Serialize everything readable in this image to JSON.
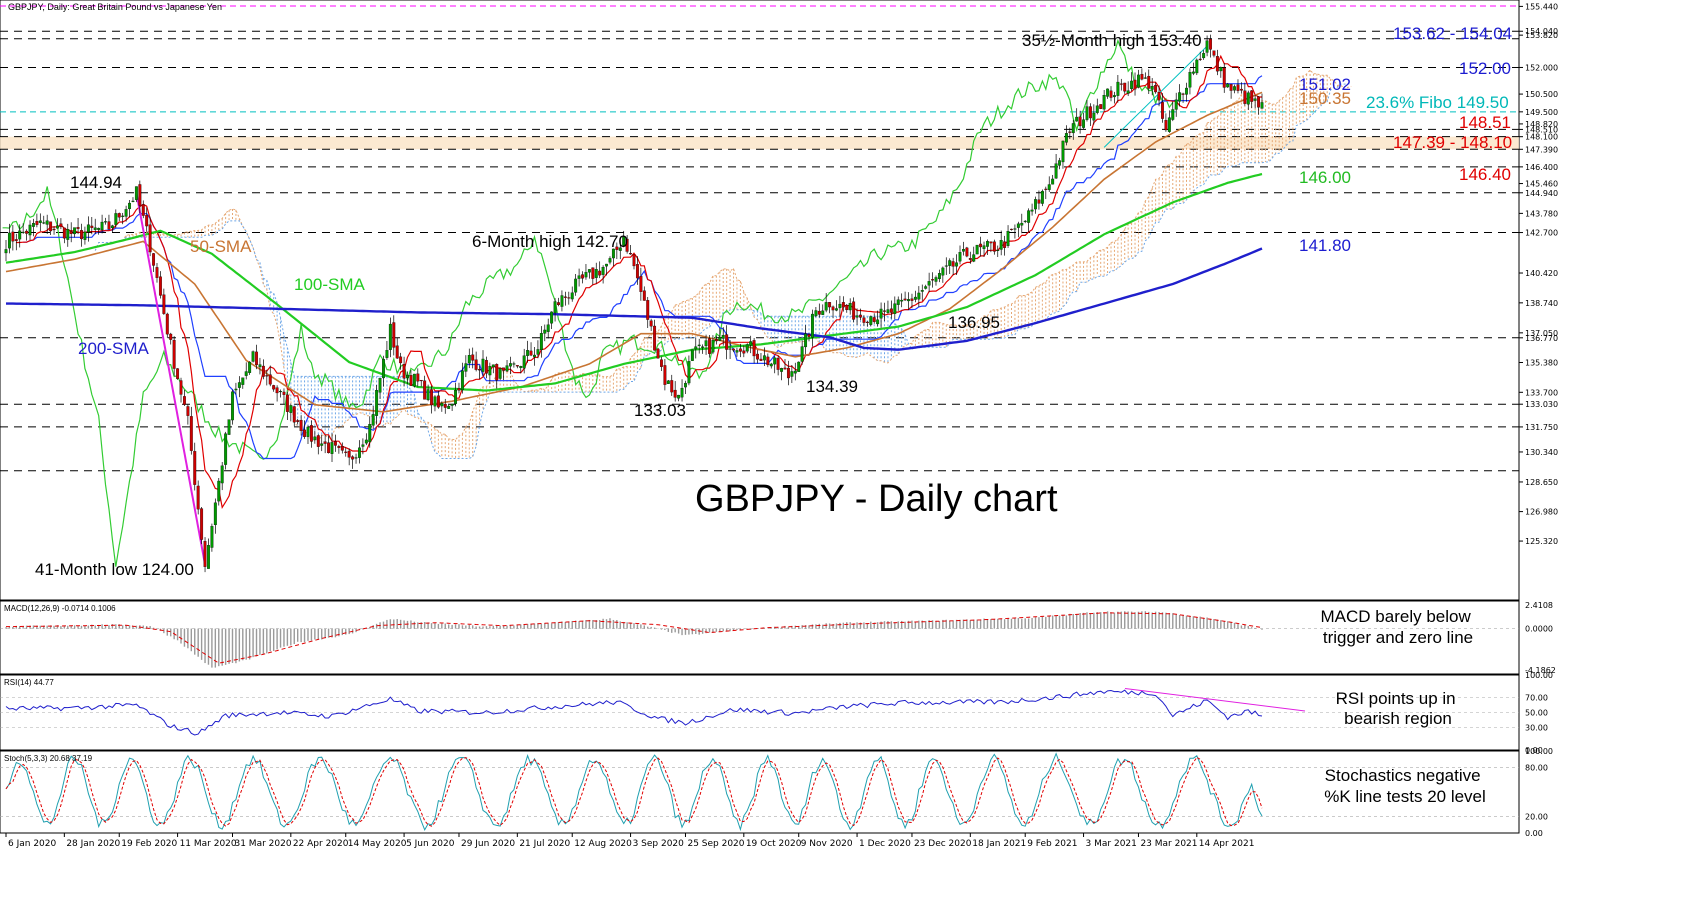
{
  "header": {
    "title": "GBPJPY, Daily:  Great Britain Pound vs Japanese Yen"
  },
  "watermark": "GBPJPY - Daily chart",
  "colors": {
    "candle_up": "#009900",
    "candle_down": "#cc0000",
    "sma50": "#c87533",
    "sma100": "#22cc22",
    "sma200": "#1f1fcc",
    "tenkan": "#e00000",
    "kijun": "#2040ff",
    "chikou": "#33cc33",
    "cloud_bull": "#e6a874",
    "cloud_bear": "#6fa8e8",
    "fibo": "#00c0c0",
    "trend": "#e020e0"
  },
  "chart_data": [
    {
      "type": "line",
      "panel": "price",
      "title": "GBPJPY, Daily:  Great Britain Pound vs Japanese Yen",
      "ylim": [
        122.0,
        155.8
      ],
      "y_ticks": [
        "125.320",
        "126.980",
        "128.650",
        "130.340",
        "131.750",
        "133.030",
        "133.700",
        "135.380",
        "136.770",
        "137.050",
        "138.740",
        "140.420",
        "142.700",
        "143.780",
        "144.940",
        "145.460",
        "146.400",
        "147.390",
        "148.100",
        "148.510",
        "148.820",
        "149.500",
        "150.500",
        "152.000",
        "153.820",
        "154.040",
        "155.440"
      ],
      "x_labels": [
        "6 Jan 2020",
        "28 Jan 2020",
        "19 Feb 2020",
        "11 Mar 2020",
        "31 Mar 2020",
        "22 Apr 2020",
        "14 May 2020",
        "5 Jun 2020",
        "29 Jun 2020",
        "21 Jul 2020",
        "12 Aug 2020",
        "3 Sep 2020",
        "25 Sep 2020",
        "19 Oct 2020",
        "9 Nov 2020",
        "1 Dec 2020",
        "23 Dec 2020",
        "18 Jan 2021",
        "9 Feb 2021",
        "3 Mar 2021",
        "23 Mar 2021",
        "14 Apr 2021"
      ],
      "close_anchors": [
        [
          0,
          142.2
        ],
        [
          10,
          143.2
        ],
        [
          20,
          142.6
        ],
        [
          30,
          143.0
        ],
        [
          38,
          144.9
        ],
        [
          42,
          142.0
        ],
        [
          48,
          136.3
        ],
        [
          53,
          132.0
        ],
        [
          58,
          124.0
        ],
        [
          62,
          128.6
        ],
        [
          66,
          133.4
        ],
        [
          72,
          135.6
        ],
        [
          80,
          133.5
        ],
        [
          88,
          131.3
        ],
        [
          95,
          130.5
        ],
        [
          100,
          129.8
        ],
        [
          106,
          131.8
        ],
        [
          112,
          137.2
        ],
        [
          115,
          135.0
        ],
        [
          120,
          134.2
        ],
        [
          126,
          132.8
        ],
        [
          130,
          133.3
        ],
        [
          135,
          135.6
        ],
        [
          145,
          134.6
        ],
        [
          155,
          136.2
        ],
        [
          160,
          138.6
        ],
        [
          168,
          140.0
        ],
        [
          176,
          141.0
        ],
        [
          180,
          142.5
        ],
        [
          183,
          140.8
        ],
        [
          188,
          137.2
        ],
        [
          192,
          134.4
        ],
        [
          196,
          133.4
        ],
        [
          200,
          135.8
        ],
        [
          208,
          136.6
        ],
        [
          216,
          136.3
        ],
        [
          224,
          135.2
        ],
        [
          228,
          134.6
        ],
        [
          232,
          136.0
        ],
        [
          236,
          138.3
        ],
        [
          240,
          138.8
        ],
        [
          248,
          138.1
        ],
        [
          256,
          138.0
        ],
        [
          264,
          139.0
        ],
        [
          272,
          140.2
        ],
        [
          280,
          141.5
        ],
        [
          290,
          142.0
        ],
        [
          298,
          143.6
        ],
        [
          304,
          145.5
        ],
        [
          310,
          148.5
        ],
        [
          316,
          149.6
        ],
        [
          322,
          150.6
        ],
        [
          330,
          151.3
        ],
        [
          334,
          151.1
        ],
        [
          338,
          148.4
        ],
        [
          342,
          150.5
        ],
        [
          346,
          152.0
        ],
        [
          350,
          153.4
        ],
        [
          352,
          152.4
        ],
        [
          356,
          150.9
        ],
        [
          362,
          150.2
        ],
        [
          366,
          149.7
        ]
      ],
      "series": [
        {
          "name": "50-SMA",
          "label": "50-SMA",
          "anchors": [
            [
              0,
              140.5
            ],
            [
              20,
              141.2
            ],
            [
              40,
              142.2
            ],
            [
              55,
              139.8
            ],
            [
              70,
              135.5
            ],
            [
              90,
              133.0
            ],
            [
              110,
              132.6
            ],
            [
              130,
              133.2
            ],
            [
              150,
              134.0
            ],
            [
              170,
              135.3
            ],
            [
              185,
              137.0
            ],
            [
              200,
              137.0
            ],
            [
              215,
              136.3
            ],
            [
              230,
              135.7
            ],
            [
              245,
              136.2
            ],
            [
              260,
              137.0
            ],
            [
              275,
              138.4
            ],
            [
              290,
              140.6
            ],
            [
              305,
              143.0
            ],
            [
              320,
              145.7
            ],
            [
              335,
              147.8
            ],
            [
              350,
              149.3
            ],
            [
              366,
              150.6
            ]
          ]
        },
        {
          "name": "100-SMA",
          "label": "100-SMA",
          "anchors": [
            [
              0,
              141.0
            ],
            [
              20,
              141.6
            ],
            [
              35,
              142.3
            ],
            [
              45,
              142.8
            ],
            [
              60,
              141.5
            ],
            [
              80,
              138.5
            ],
            [
              100,
              135.4
            ],
            [
              120,
              134.0
            ],
            [
              140,
              133.8
            ],
            [
              160,
              134.2
            ],
            [
              180,
              135.3
            ],
            [
              200,
              136.1
            ],
            [
              220,
              136.4
            ],
            [
              240,
              136.9
            ],
            [
              260,
              137.4
            ],
            [
              280,
              138.5
            ],
            [
              300,
              140.3
            ],
            [
              320,
              142.6
            ],
            [
              340,
              144.4
            ],
            [
              356,
              145.5
            ],
            [
              366,
              146.0
            ]
          ]
        },
        {
          "name": "200-SMA",
          "label": "200-SMA",
          "anchors": [
            [
              0,
              138.7
            ],
            [
              40,
              138.6
            ],
            [
              80,
              138.4
            ],
            [
              120,
              138.2
            ],
            [
              160,
              138.1
            ],
            [
              200,
              137.9
            ],
            [
              220,
              137.3
            ],
            [
              240,
              136.8
            ],
            [
              250,
              136.2
            ],
            [
              260,
              136.1
            ],
            [
              280,
              136.6
            ],
            [
              300,
              137.6
            ],
            [
              320,
              138.7
            ],
            [
              340,
              139.8
            ],
            [
              356,
              141.0
            ],
            [
              366,
              141.8
            ]
          ]
        }
      ],
      "annotations": [
        {
          "id": "high35",
          "text": "35½-Month high 153.40"
        },
        {
          "id": "high6m",
          "text": "6-Month high 142.70"
        },
        {
          "id": "h14494",
          "text": "144.94"
        },
        {
          "id": "l133",
          "text": "133.03"
        },
        {
          "id": "l134",
          "text": "134.39"
        },
        {
          "id": "l136",
          "text": "136.95"
        },
        {
          "id": "low41",
          "text": "41-Month low 124.00"
        }
      ],
      "right_labels": [
        {
          "id": "r1",
          "text": "153.62 - 154.04",
          "color": "#1c1cd0"
        },
        {
          "id": "r2",
          "text": "152.00",
          "color": "#1c1cd0"
        },
        {
          "id": "r3",
          "text": "151.02",
          "color": "#1c1cd0"
        },
        {
          "id": "r4",
          "text": "150.35",
          "color": "#c87533"
        },
        {
          "id": "r5",
          "text": "23.6% Fibo 149.50",
          "color": "#00b8b8"
        },
        {
          "id": "r6",
          "text": "148.51",
          "color": "#e00000"
        },
        {
          "id": "r7",
          "text": "147.39 - 148.10",
          "color": "#e00000"
        },
        {
          "id": "r8",
          "text": "146.40",
          "color": "#e00000"
        },
        {
          "id": "r9",
          "text": "146.00",
          "color": "#22bb22"
        },
        {
          "id": "r10",
          "text": "141.80",
          "color": "#1c1cd0"
        }
      ]
    },
    {
      "type": "bar",
      "panel": "macd",
      "title": "MACD(12,26,9) -0.0714 0.1006",
      "ylim": [
        -4.6,
        2.8
      ],
      "y_ticks": [
        "2.4108",
        "0.0000",
        "-4.1862"
      ],
      "anchors": [
        [
          0,
          0.2
        ],
        [
          30,
          0.4
        ],
        [
          42,
          0.3
        ],
        [
          50,
          -1.2
        ],
        [
          60,
          -4.0
        ],
        [
          70,
          -3.2
        ],
        [
          85,
          -1.4
        ],
        [
          100,
          -0.6
        ],
        [
          112,
          1.0
        ],
        [
          122,
          0.6
        ],
        [
          140,
          0.2
        ],
        [
          160,
          0.6
        ],
        [
          176,
          1.0
        ],
        [
          186,
          0.3
        ],
        [
          198,
          -0.7
        ],
        [
          212,
          -0.2
        ],
        [
          230,
          0.3
        ],
        [
          246,
          0.6
        ],
        [
          270,
          0.8
        ],
        [
          300,
          1.1
        ],
        [
          318,
          1.7
        ],
        [
          336,
          1.7
        ],
        [
          352,
          1.0
        ],
        [
          366,
          -0.07
        ]
      ],
      "signal_anchors": [
        [
          0,
          0.2
        ],
        [
          35,
          0.35
        ],
        [
          48,
          -0.3
        ],
        [
          62,
          -3.5
        ],
        [
          75,
          -2.6
        ],
        [
          92,
          -1.0
        ],
        [
          108,
          0.3
        ],
        [
          125,
          0.6
        ],
        [
          145,
          0.3
        ],
        [
          170,
          0.8
        ],
        [
          190,
          0.4
        ],
        [
          205,
          -0.4
        ],
        [
          222,
          0.1
        ],
        [
          250,
          0.5
        ],
        [
          285,
          0.9
        ],
        [
          320,
          1.6
        ],
        [
          340,
          1.5
        ],
        [
          356,
          0.7
        ],
        [
          366,
          0.1
        ]
      ],
      "annotation": "MACD barely below trigger and zero line"
    },
    {
      "type": "line",
      "panel": "rsi",
      "title": "RSI(14) 44.77",
      "ylim": [
        0,
        100
      ],
      "y_ticks": [
        "100.00",
        "70.00",
        "50.00",
        "30.00",
        "0.00"
      ],
      "anchors": [
        [
          0,
          55
        ],
        [
          20,
          56
        ],
        [
          38,
          60
        ],
        [
          48,
          32
        ],
        [
          56,
          22
        ],
        [
          64,
          46
        ],
        [
          80,
          50
        ],
        [
          95,
          45
        ],
        [
          112,
          68
        ],
        [
          120,
          52
        ],
        [
          140,
          50
        ],
        [
          160,
          58
        ],
        [
          178,
          64
        ],
        [
          190,
          42
        ],
        [
          198,
          36
        ],
        [
          212,
          54
        ],
        [
          230,
          49
        ],
        [
          245,
          58
        ],
        [
          262,
          63
        ],
        [
          290,
          64
        ],
        [
          305,
          70
        ],
        [
          320,
          78
        ],
        [
          335,
          76
        ],
        [
          340,
          46
        ],
        [
          350,
          66
        ],
        [
          356,
          44
        ],
        [
          362,
          52
        ],
        [
          366,
          45
        ]
      ],
      "annotation": "RSI points up in bearish region"
    },
    {
      "type": "line",
      "panel": "stoch",
      "title": "Stoch(5,3,3) 20.68 37.19",
      "ylim": [
        0,
        100
      ],
      "y_ticks": [
        "100.00",
        "80.00",
        "20.00",
        "0.00"
      ],
      "period_days": 18,
      "annotation": "Stochastics negative %K line tests 20 level"
    }
  ]
}
